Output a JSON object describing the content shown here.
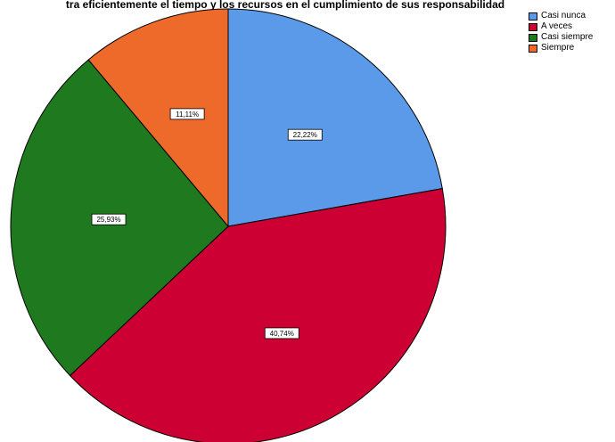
{
  "chart_data": {
    "type": "pie",
    "title": "tra eficientemente el tiempo y los recursos en el cumplimiento de sus responsabilidad",
    "legend_position": "top-right",
    "start_angle_deg": 0,
    "direction": "clockwise",
    "slices": [
      {
        "label": "Casi nunca",
        "value": 22.22,
        "display": "22,22%",
        "color": "#5b9ae8"
      },
      {
        "label": "A veces",
        "value": 40.74,
        "display": "40,74%",
        "color": "#cc0033"
      },
      {
        "label": "Casi siempre",
        "value": 25.93,
        "display": "25,93%",
        "color": "#1f7a1f"
      },
      {
        "label": "Siempre",
        "value": 11.11,
        "display": "11,11%",
        "color": "#ee6a2a"
      }
    ]
  }
}
